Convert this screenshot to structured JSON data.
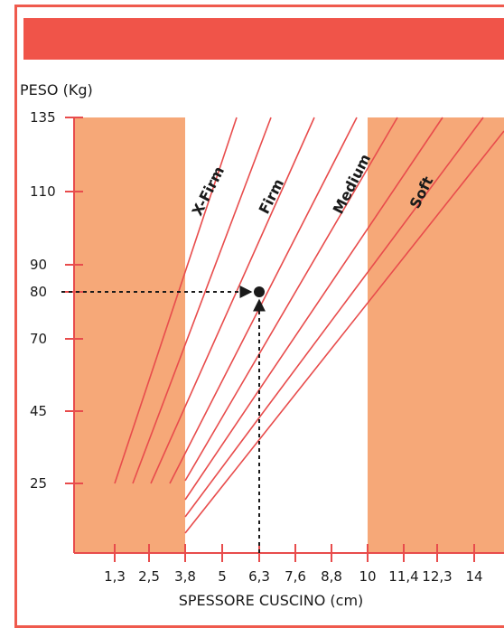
{
  "chart_data": {
    "type": "line",
    "ylabel": "PESO (Kg)",
    "xlabel": "SPESSORE CUSCINO (cm)",
    "x_ticks": [
      "1,3",
      "2,5",
      "3,8",
      "5",
      "6,3",
      "7,6",
      "8,8",
      "10",
      "11,4",
      "12,3",
      "14"
    ],
    "y_ticks": [
      135,
      110,
      90,
      80,
      70,
      45,
      25
    ],
    "zones": [
      {
        "from": "0",
        "to": "3,8",
        "shaded": true
      },
      {
        "from": "3,8",
        "to": "10",
        "shaded": false
      },
      {
        "from": "10",
        "to": "14+",
        "shaded": true
      }
    ],
    "curve_labels": [
      "X-Firm",
      "Firm",
      "Medium",
      "Soft"
    ],
    "example_point": {
      "x": "6,3",
      "y": 80
    },
    "colors": {
      "zone": "#f6a878",
      "line": "#e84c4c",
      "banner": "#f05449"
    }
  }
}
